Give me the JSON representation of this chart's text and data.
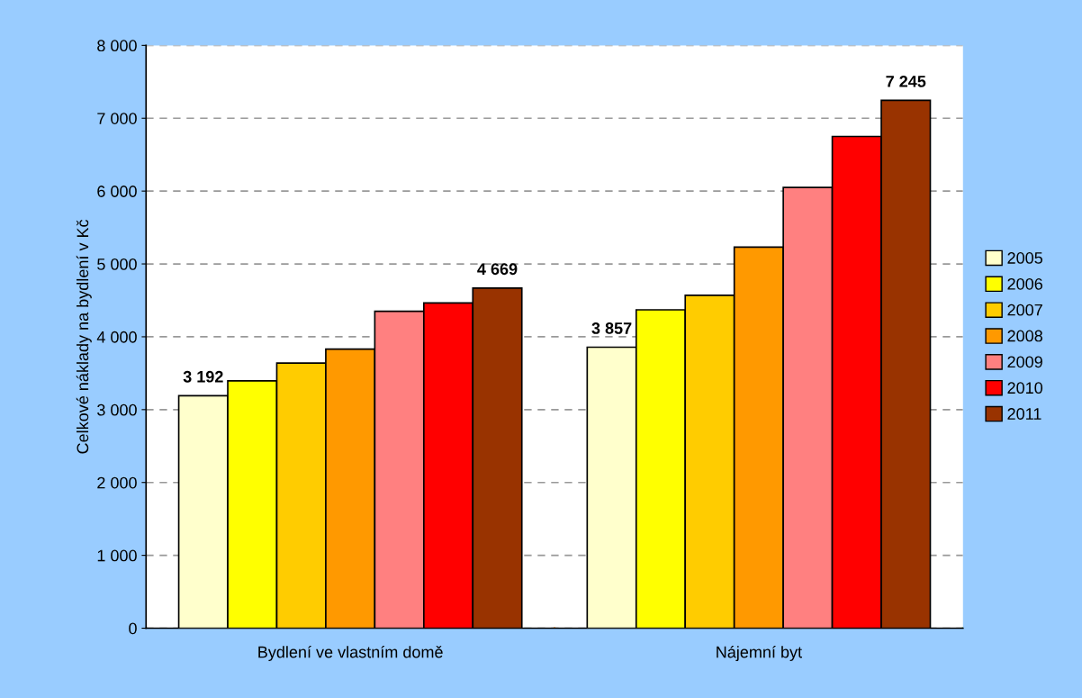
{
  "chart_data": {
    "type": "bar",
    "ylabel": "Celkové náklady na bydlení v Kč",
    "categories": [
      "Bydlení ve vlastním domě",
      "Nájemní byt"
    ],
    "series": [
      {
        "name": "2005",
        "color": "#ffffcc",
        "values": [
          3192,
          3857
        ],
        "value_labels": [
          "3 192",
          "3 857"
        ]
      },
      {
        "name": "2006",
        "color": "#ffff00",
        "values": [
          3395,
          4370
        ]
      },
      {
        "name": "2007",
        "color": "#ffcc00",
        "values": [
          3640,
          4570
        ]
      },
      {
        "name": "2008",
        "color": "#ff9900",
        "values": [
          3830,
          5230
        ]
      },
      {
        "name": "2009",
        "color": "#ff8080",
        "values": [
          4350,
          6050
        ]
      },
      {
        "name": "2010",
        "color": "#ff0000",
        "values": [
          4465,
          6750
        ]
      },
      {
        "name": "2011",
        "color": "#993300",
        "values": [
          4669,
          7245
        ],
        "value_labels": [
          "4 669",
          "7 245"
        ]
      }
    ],
    "ylim": [
      0,
      8000
    ],
    "yticks": [
      {
        "value": 0,
        "label": "0"
      },
      {
        "value": 1000,
        "label": "1 000"
      },
      {
        "value": 2000,
        "label": "2 000"
      },
      {
        "value": 3000,
        "label": "3 000"
      },
      {
        "value": 4000,
        "label": "4 000"
      },
      {
        "value": 5000,
        "label": "5 000"
      },
      {
        "value": 6000,
        "label": "6 000"
      },
      {
        "value": 7000,
        "label": "7 000"
      },
      {
        "value": 8000,
        "label": "8 000"
      }
    ],
    "grid": "y",
    "legend": "right"
  }
}
